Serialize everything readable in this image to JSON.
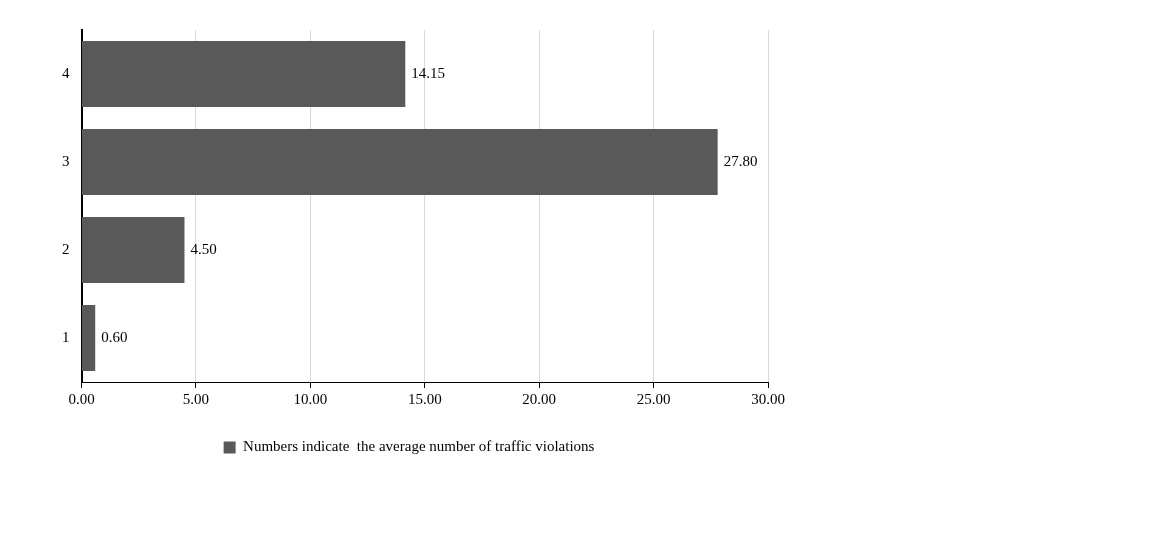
{
  "chart_data": {
    "type": "bar",
    "orientation": "horizontal",
    "categories": [
      "4",
      "3",
      "2",
      "1"
    ],
    "series": [
      {
        "name": "Numbers indicate  the average number of traffic violations",
        "color": "#595959",
        "values": [
          14.15,
          27.8,
          4.5,
          0.6
        ],
        "value_labels": [
          "14.15",
          "27.80",
          "4.50",
          "0.60"
        ]
      }
    ],
    "xlim": [
      0,
      30
    ],
    "xticks": [
      {
        "value": 0,
        "label": "0.00"
      },
      {
        "value": 5,
        "label": "5.00"
      },
      {
        "value": 10,
        "label": "10.00"
      },
      {
        "value": 15,
        "label": "15.00"
      },
      {
        "value": 20,
        "label": "20.00"
      },
      {
        "value": 25,
        "label": "25.00"
      },
      {
        "value": 30,
        "label": "30.00"
      }
    ],
    "grid": "x",
    "legend": "bottom"
  }
}
